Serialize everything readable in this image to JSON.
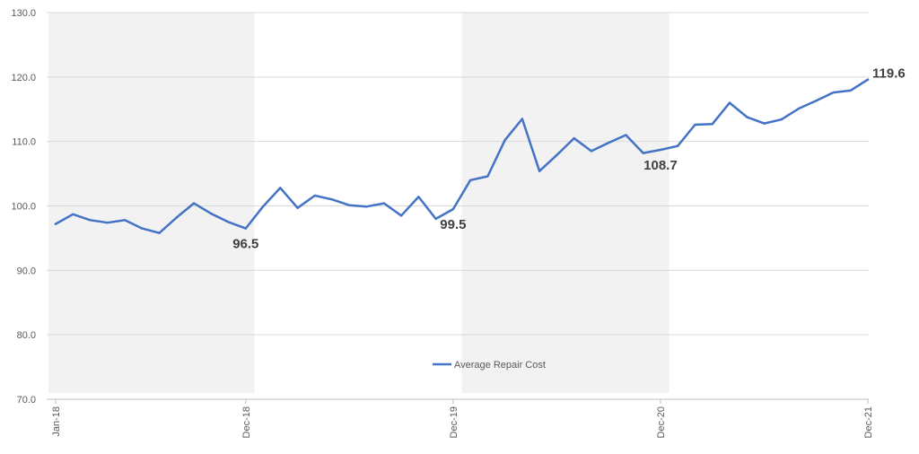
{
  "chart_data": {
    "type": "line",
    "title": "",
    "xlabel": "",
    "ylabel": "",
    "ylim": [
      70,
      130
    ],
    "yticks": [
      "70.0",
      "80.0",
      "90.0",
      "100.0",
      "110.0",
      "120.0",
      "130.0"
    ],
    "xtick_labels": [
      {
        "index": 0,
        "label": "Jan-18"
      },
      {
        "index": 11,
        "label": "Dec-18"
      },
      {
        "index": 23,
        "label": "Dec-19"
      },
      {
        "index": 35,
        "label": "Dec-20"
      },
      {
        "index": 47,
        "label": "Dec-21"
      }
    ],
    "x_start": "Jan-18",
    "x_end": "Dec-21",
    "grid": true,
    "legend_position": "bottom-center",
    "shaded_periods": [
      {
        "from_index": 0,
        "to_index": 11
      },
      {
        "from_index": 24,
        "to_index": 35
      }
    ],
    "series": [
      {
        "name": "Average Repair Cost",
        "color": "#4472C4",
        "values": [
          97.2,
          98.7,
          97.8,
          97.4,
          97.8,
          96.5,
          95.8,
          98.2,
          100.4,
          98.8,
          97.5,
          96.5,
          99.9,
          102.8,
          99.7,
          101.6,
          101.0,
          100.1,
          99.9,
          100.4,
          98.5,
          101.4,
          98.0,
          99.5,
          104.0,
          104.6,
          110.2,
          113.5,
          105.4,
          107.9,
          110.5,
          108.5,
          109.8,
          111.0,
          108.2,
          108.7,
          109.3,
          112.6,
          112.7,
          116.0,
          113.8,
          112.8,
          113.4,
          115.1,
          116.3,
          117.6,
          117.9,
          119.6
        ]
      }
    ],
    "data_labels": [
      {
        "index": 11,
        "text": "96.5"
      },
      {
        "index": 23,
        "text": "99.5"
      },
      {
        "index": 35,
        "text": "108.7"
      },
      {
        "index": 47,
        "text": "119.6"
      }
    ]
  }
}
